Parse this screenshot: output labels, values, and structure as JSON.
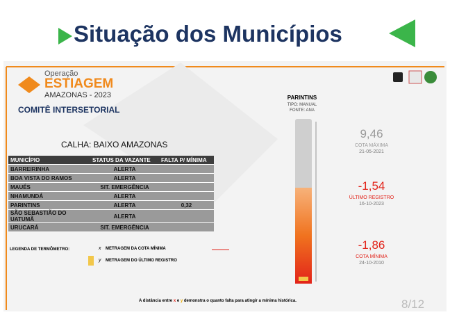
{
  "header": {
    "title": "Situação dos Municípios"
  },
  "logo": {
    "operation": "Operação",
    "name": "ESTIAGEM",
    "subtitle": "AMAZONAS - 2023",
    "committee": "COMITÊ INTERSETORIAL"
  },
  "calha": "CALHA: BAIXO AMAZONAS",
  "table": {
    "headers": [
      "MUNICÍPIO",
      "STATUS DA VAZANTE",
      "FALTA P/ MÍNIMA"
    ],
    "rows": [
      [
        "BARREIRINHA",
        "ALERTA",
        ""
      ],
      [
        "BOA VISTA DO RAMOS",
        "ALERTA",
        ""
      ],
      [
        "MAUÉS",
        "SIT. EMERGÊNCIA",
        ""
      ],
      [
        "NHAMUNDÁ",
        "ALERTA",
        ""
      ],
      [
        "PARINTINS",
        "ALERTA",
        "0,32"
      ],
      [
        "SÃO SEBASTIÃO DO UATUMÃ",
        "ALERTA",
        ""
      ],
      [
        "URUCARÁ",
        "SIT. EMERGÊNCIA",
        ""
      ]
    ]
  },
  "legend": {
    "title": "LEGENDA DE TERMÔMETRO:",
    "x_symbol": "x",
    "x_text": "METRAGEM DA COTA MÍNIMA",
    "y_symbol": "y",
    "y_text": "METRAGEM DO ÚLTIMO REGISTRO"
  },
  "gauge": {
    "station": "PARINTINS",
    "type": "TIPO: MANUAL",
    "source": "FONTE: ANA"
  },
  "stats": [
    {
      "value": "9,46",
      "label": "COTA MÁXIMA",
      "date": "21-05-2021"
    },
    {
      "value": "-1,54",
      "label": "ÚLTIMO REGISTRO",
      "date": "16-10-2023"
    },
    {
      "value": "-1,86",
      "label": "COTA MÍNIMA",
      "date": "24-10-2010"
    }
  ],
  "footnote": {
    "part1": "A distância entre",
    "x": "x",
    "and": "e",
    "y": "y",
    "part2": "demonstra o quanto falta para atingir a mínima histórica."
  },
  "page": "8/12"
}
